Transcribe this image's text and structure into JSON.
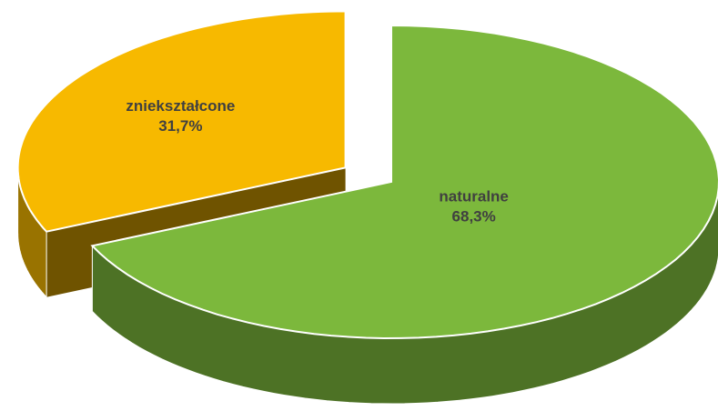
{
  "chart_data": {
    "type": "pie3d",
    "categories": [
      "naturalne",
      "zniekształcone"
    ],
    "values": [
      68.3,
      31.7
    ],
    "value_labels": [
      "68,3%",
      "31,7%"
    ],
    "colors": [
      "#7cb83c",
      "#f7b900"
    ],
    "exploded": [
      false,
      true
    ]
  }
}
